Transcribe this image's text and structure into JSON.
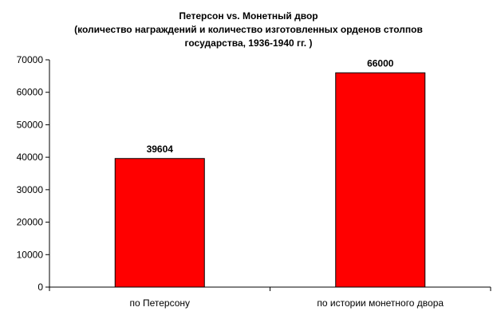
{
  "chart_data": {
    "type": "bar",
    "title": "Петерсон vs. Монетный двор",
    "subtitle_lines": [
      "(количество награждений и количество изготовленных орденов столпов",
      "государства, 1936-1940 гг. )"
    ],
    "categories": [
      "по Петерсону",
      "по истории монетного двора"
    ],
    "values": [
      39604,
      66000
    ],
    "value_labels": [
      "39604",
      "66000"
    ],
    "ylim": [
      0,
      70000
    ],
    "yticks": [
      0,
      10000,
      20000,
      30000,
      40000,
      50000,
      60000,
      70000
    ],
    "ytick_labels": [
      "0",
      "10000",
      "20000",
      "30000",
      "40000",
      "50000",
      "60000",
      "70000"
    ],
    "xlabel": "",
    "ylabel": "",
    "grid": false,
    "legend": "none",
    "bar_color": "#ff0000",
    "bar_edge_color": "#000000"
  }
}
